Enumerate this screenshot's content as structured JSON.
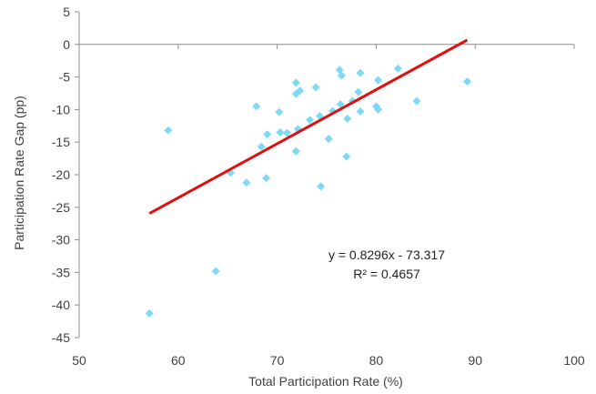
{
  "chart_data": {
    "type": "scatter",
    "title": "",
    "xlabel": "Total Participation Rate (%)",
    "ylabel": "Participation Rate Gap (pp)",
    "xlim": [
      50,
      100
    ],
    "ylim": [
      -45,
      5
    ],
    "xticks": [
      50,
      60,
      70,
      80,
      90,
      100
    ],
    "yticks": [
      5,
      0,
      -5,
      -10,
      -15,
      -20,
      -25,
      -30,
      -35,
      -40,
      -45
    ],
    "grid": false,
    "legend": "none",
    "marker_color": "#7fd9f5",
    "trendline_color": "#e01010",
    "series": [
      {
        "points": [
          [
            57.1,
            -41.3
          ],
          [
            59.0,
            -13.2
          ],
          [
            63.8,
            -34.8
          ],
          [
            65.3,
            -19.7
          ],
          [
            66.9,
            -21.2
          ],
          [
            67.9,
            -9.5
          ],
          [
            68.4,
            -15.7
          ],
          [
            68.9,
            -20.5
          ],
          [
            69.0,
            -13.8
          ],
          [
            70.2,
            -10.4
          ],
          [
            70.3,
            -13.5
          ],
          [
            71.0,
            -13.6
          ],
          [
            71.9,
            -5.9
          ],
          [
            71.9,
            -7.6
          ],
          [
            71.9,
            -16.4
          ],
          [
            72.1,
            -13.0
          ],
          [
            72.3,
            -7.1
          ],
          [
            73.3,
            -11.6
          ],
          [
            73.9,
            -6.6
          ],
          [
            74.3,
            -11.0
          ],
          [
            74.4,
            -21.8
          ],
          [
            75.2,
            -14.5
          ],
          [
            75.6,
            -10.2
          ],
          [
            76.3,
            -3.9
          ],
          [
            76.4,
            -9.2
          ],
          [
            76.5,
            -4.8
          ],
          [
            77.0,
            -17.2
          ],
          [
            77.1,
            -11.4
          ],
          [
            77.6,
            -8.7
          ],
          [
            78.2,
            -7.3
          ],
          [
            78.4,
            -10.3
          ],
          [
            78.4,
            -4.4
          ],
          [
            80.0,
            -9.5
          ],
          [
            80.2,
            -10.0
          ],
          [
            80.2,
            -5.5
          ],
          [
            82.2,
            -3.7
          ],
          [
            84.1,
            -8.7
          ],
          [
            89.2,
            -5.7
          ]
        ]
      }
    ],
    "trendline": {
      "slope": 0.8296,
      "intercept": -73.317,
      "x_range": [
        57.1,
        89.2
      ],
      "equation": "y = 0.8296x - 73.317",
      "r_squared": "R² = 0.4657"
    }
  }
}
